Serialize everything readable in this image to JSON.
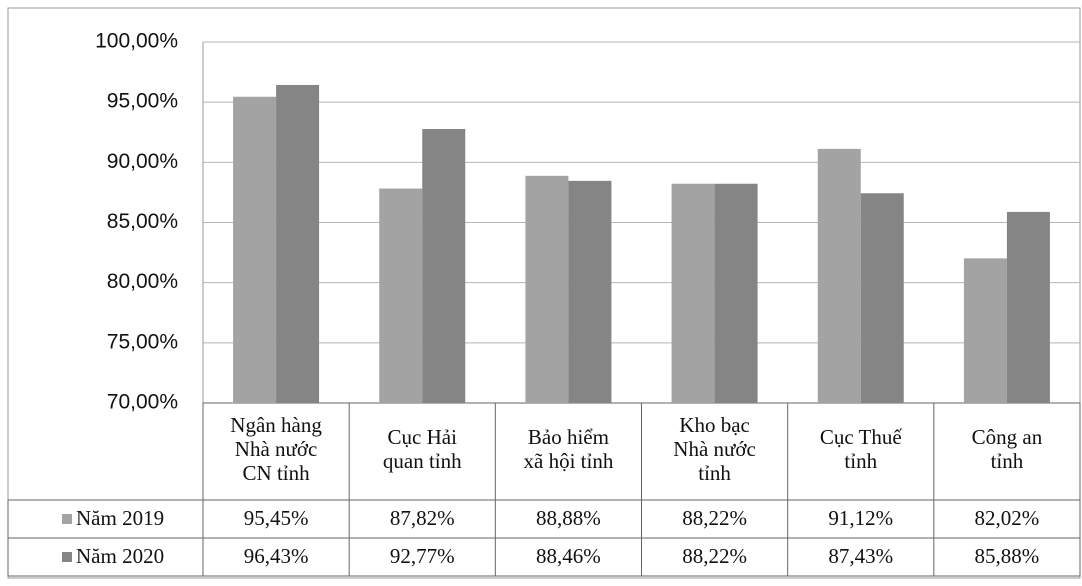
{
  "chart_data": {
    "type": "bar",
    "categories": [
      "Ngân hàng\nNhà nước\nCN tỉnh",
      "Cục Hải\nquan tỉnh",
      "Bảo hiểm\nxã hội tỉnh",
      "Kho bạc\nNhà nước\ntỉnh",
      "Cục Thuế\ntỉnh",
      "Công an\ntỉnh"
    ],
    "series": [
      {
        "name": "Năm 2019",
        "color": "#a3a3a3",
        "values": [
          95.45,
          87.82,
          88.88,
          88.22,
          91.12,
          82.02
        ],
        "value_labels": [
          "95,45%",
          "87,82%",
          "88,88%",
          "88,22%",
          "91,12%",
          "82,02%"
        ]
      },
      {
        "name": "Năm 2020",
        "color": "#858585",
        "values": [
          96.43,
          92.77,
          88.46,
          88.22,
          87.43,
          85.88
        ],
        "value_labels": [
          "96,43%",
          "92,77%",
          "88,46%",
          "88,22%",
          "87,43%",
          "85,88%"
        ]
      }
    ],
    "ylim": [
      70,
      100
    ],
    "yticks": [
      {
        "value": 70,
        "label": "70,00%"
      },
      {
        "value": 75,
        "label": "75,00%"
      },
      {
        "value": 80,
        "label": "80,00%"
      },
      {
        "value": 85,
        "label": "85,00%"
      },
      {
        "value": 90,
        "label": "90,00%"
      },
      {
        "value": 95,
        "label": "95,00%"
      },
      {
        "value": 100,
        "label": "100,00%"
      }
    ],
    "grid": true
  }
}
